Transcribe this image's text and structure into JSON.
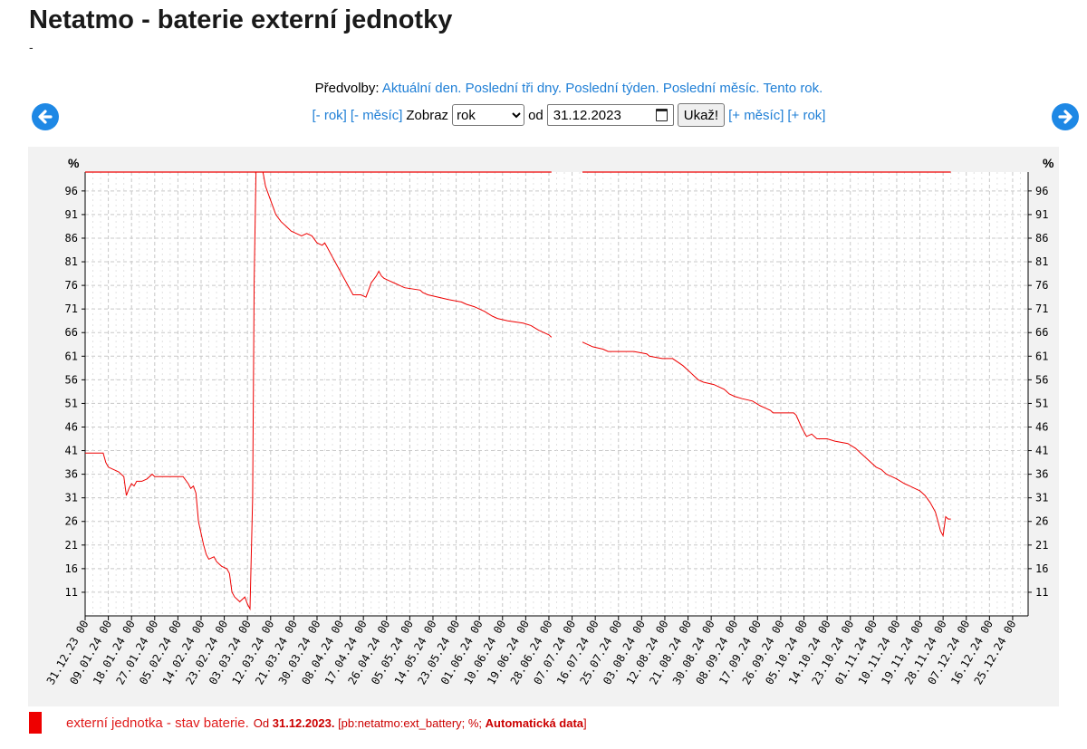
{
  "page": {
    "title": "Netatmo - baterie externí jednotky",
    "subtitle": "-"
  },
  "presets": {
    "label": "Předvolby:",
    "items": [
      "Aktuální den.",
      "Poslední tři dny.",
      "Poslední týden.",
      "Poslední měsíc.",
      "Tento rok."
    ]
  },
  "controls": {
    "minus_year": "[- rok]",
    "minus_month": "[- měsíc]",
    "show_label": "Zobraz",
    "period_selected": "rok",
    "from_label": "od",
    "date_value": "31.12.2023",
    "show_button": "Ukaž!",
    "plus_month": "[+ měsíc]",
    "plus_year": "[+ rok]"
  },
  "icons": {
    "prev": "arrow-left-icon",
    "next": "arrow-right-icon",
    "calendar": "calendar-icon"
  },
  "colors": {
    "series": "#ee0000",
    "link": "#1f7fd6",
    "nav": "#1e88e5",
    "plot_bg": "#f2f2f2"
  },
  "legend": {
    "label": "externí jednotka - stav baterie.",
    "from_text": "Od",
    "from_date": "31.12.2023.",
    "source": "[pb:netatmo:ext_battery; %;",
    "auto": "Automatická data",
    "close": "]"
  },
  "chart_data": {
    "type": "line",
    "title": "",
    "ylabel": "%",
    "ylabel_right": "%",
    "ylim": [
      6,
      100
    ],
    "yticks": [
      11,
      16,
      21,
      26,
      31,
      36,
      41,
      46,
      51,
      56,
      61,
      66,
      71,
      76,
      81,
      86,
      91,
      96
    ],
    "xlim": [
      0,
      366
    ],
    "xtick_step_days": 9,
    "xtick_labels": [
      "31.12.23 00",
      "09.01.24 00",
      "18.01.24 00",
      "27.01.24 00",
      "05.02.24 00",
      "14.02.24 00",
      "23.02.24 00",
      "03.03.24 00",
      "12.03.24 00",
      "21.03.24 00",
      "30.03.24 00",
      "08.04.24 00",
      "17.04.24 00",
      "26.04.24 00",
      "05.05.24 00",
      "14.05.24 00",
      "23.05.24 00",
      "01.06.24 00",
      "10.06.24 00",
      "19.06.24 00",
      "28.06.24 00",
      "07.07.24 00",
      "16.07.24 00",
      "25.07.24 00",
      "03.08.24 00",
      "12.08.24 00",
      "21.08.24 00",
      "30.08.24 00",
      "08.09.24 00",
      "17.09.24 00",
      "26.09.24 00",
      "05.10.24 00",
      "14.10.24 00",
      "23.10.24 00",
      "01.11.24 00",
      "10.11.24 00",
      "19.11.24 00",
      "28.11.24 00",
      "07.12.24 00",
      "16.12.24 00",
      "25.12.24 00"
    ],
    "grid": true,
    "legend_position": "bottom-left",
    "series": [
      {
        "name": "externí jednotka - stav baterie.",
        "segments": [
          [
            [
              0,
              40.5
            ],
            [
              7,
              40.5
            ],
            [
              8,
              38.5
            ],
            [
              9,
              37.5
            ],
            [
              11,
              37
            ],
            [
              13,
              36.5
            ],
            [
              15,
              35.5
            ],
            [
              16,
              31.5
            ],
            [
              17,
              33
            ],
            [
              18,
              34
            ],
            [
              19,
              33.5
            ],
            [
              20,
              34.5
            ],
            [
              22,
              34.5
            ],
            [
              24,
              35
            ],
            [
              26,
              36
            ],
            [
              27,
              35.5
            ],
            [
              38,
              35.5
            ],
            [
              40,
              34
            ],
            [
              41,
              33
            ],
            [
              42,
              33.5
            ],
            [
              43,
              32
            ],
            [
              44,
              26
            ],
            [
              46,
              21
            ],
            [
              47,
              19
            ],
            [
              48,
              18
            ],
            [
              50,
              18.5
            ],
            [
              51,
              17.5
            ],
            [
              53,
              16.5
            ],
            [
              55,
              16
            ],
            [
              56,
              15
            ],
            [
              57,
              11
            ],
            [
              58,
              10
            ],
            [
              60,
              9
            ],
            [
              62,
              10
            ],
            [
              63,
              8.5
            ],
            [
              64,
              7.5
            ],
            [
              65,
              31
            ],
            [
              65.6,
              77
            ],
            [
              66.3,
              100
            ],
            [
              69,
              100
            ],
            [
              70,
              97
            ],
            [
              72,
              94
            ],
            [
              74,
              91
            ],
            [
              76,
              89.5
            ],
            [
              78,
              88.5
            ],
            [
              80,
              87.5
            ],
            [
              82,
              87
            ],
            [
              84,
              86.5
            ],
            [
              86,
              87
            ],
            [
              88,
              86.5
            ],
            [
              90,
              85
            ],
            [
              92,
              84.5
            ],
            [
              93,
              85
            ],
            [
              94,
              84
            ],
            [
              96,
              82
            ],
            [
              98,
              80
            ],
            [
              100,
              78
            ],
            [
              102,
              76
            ],
            [
              104,
              74
            ],
            [
              107,
              74
            ],
            [
              109,
              73.5
            ],
            [
              110,
              75
            ],
            [
              111,
              76.5
            ],
            [
              113,
              78
            ],
            [
              114,
              79
            ],
            [
              115,
              78
            ],
            [
              116,
              77.5
            ],
            [
              118,
              77
            ],
            [
              120,
              76.5
            ],
            [
              122,
              76
            ],
            [
              124,
              75.5
            ],
            [
              130,
              75
            ],
            [
              131,
              74.5
            ],
            [
              133,
              74
            ],
            [
              137,
              73.5
            ],
            [
              141,
              73
            ],
            [
              146,
              72.5
            ],
            [
              148,
              72
            ],
            [
              151,
              71.5
            ],
            [
              155,
              70.5
            ],
            [
              158,
              69.5
            ],
            [
              160,
              69
            ],
            [
              164,
              68.5
            ],
            [
              170,
              68
            ],
            [
              173,
              67.5
            ],
            [
              176,
              66.5
            ],
            [
              178,
              66
            ],
            [
              180,
              65.5
            ],
            [
              181,
              65
            ]
          ],
          [
            [
              193,
              64
            ],
            [
              195,
              63.5
            ],
            [
              197,
              63
            ],
            [
              201,
              62.5
            ],
            [
              203,
              62
            ],
            [
              213,
              62
            ],
            [
              218,
              61.5
            ],
            [
              219,
              61
            ],
            [
              224,
              60.5
            ],
            [
              228,
              60.5
            ],
            [
              232,
              59
            ],
            [
              234,
              58
            ],
            [
              236,
              57
            ],
            [
              238,
              56
            ],
            [
              240,
              55.5
            ],
            [
              244,
              55
            ],
            [
              246,
              54.5
            ],
            [
              248,
              54
            ],
            [
              250,
              53
            ],
            [
              252,
              52.5
            ],
            [
              255,
              52
            ],
            [
              259,
              51.5
            ],
            [
              262,
              50.5
            ],
            [
              264,
              50
            ],
            [
              266,
              49.5
            ],
            [
              267,
              49
            ],
            [
              275,
              49
            ],
            [
              276,
              48.5
            ],
            [
              278,
              46
            ],
            [
              279,
              45
            ],
            [
              280,
              44
            ],
            [
              282,
              44.5
            ],
            [
              284,
              43.5
            ],
            [
              288,
              43.5
            ],
            [
              291,
              43
            ],
            [
              296,
              42.5
            ],
            [
              299,
              41.5
            ],
            [
              301,
              40.5
            ],
            [
              303,
              39.5
            ],
            [
              305,
              38.5
            ],
            [
              307,
              37.5
            ],
            [
              309,
              37
            ],
            [
              311,
              36
            ],
            [
              313,
              35.5
            ],
            [
              315,
              35
            ],
            [
              318,
              34
            ],
            [
              320,
              33.5
            ],
            [
              322,
              33
            ],
            [
              324,
              32.5
            ],
            [
              326,
              31.5
            ],
            [
              328,
              30
            ],
            [
              330,
              28
            ],
            [
              331,
              26
            ],
            [
              332,
              24
            ],
            [
              333,
              23
            ],
            [
              334,
              27
            ],
            [
              335,
              26.5
            ],
            [
              336,
              26.5
            ]
          ]
        ]
      }
    ]
  }
}
